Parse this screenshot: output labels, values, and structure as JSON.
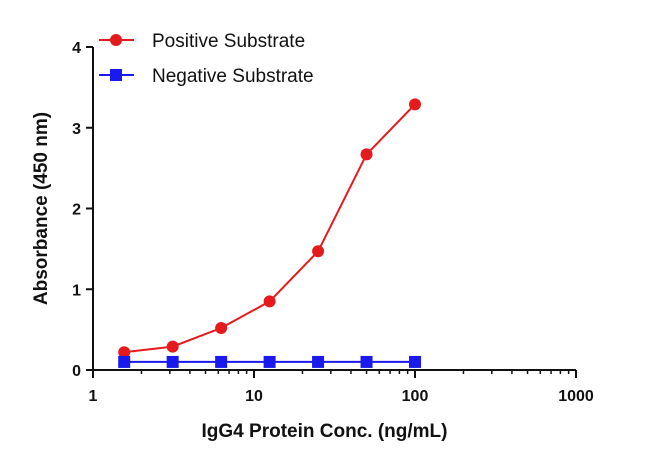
{
  "chart_data": {
    "type": "line",
    "x_scale": "log",
    "xlabel": "IgG4 Protein Conc. (ng/mL)",
    "ylabel": "Absorbance (450 nm)",
    "xlim": [
      1,
      1000
    ],
    "ylim": [
      0,
      4
    ],
    "x_ticks": [
      1,
      10,
      100,
      1000
    ],
    "x_tick_labels": [
      "1",
      "10",
      "100",
      "1000"
    ],
    "y_ticks": [
      0,
      1,
      2,
      3,
      4
    ],
    "y_tick_labels": [
      "0",
      "1",
      "2",
      "3",
      "4"
    ],
    "grid": false,
    "legend_position": "top-left",
    "x": [
      1.5625,
      3.125,
      6.25,
      12.5,
      25,
      50,
      100
    ],
    "series": [
      {
        "name": "Positive Substrate",
        "color": "#e41a1c",
        "marker": "circle",
        "values": [
          0.22,
          0.29,
          0.52,
          0.85,
          1.47,
          2.67,
          3.29
        ]
      },
      {
        "name": "Negative Substrate",
        "color": "#1a1aee",
        "marker": "square",
        "values": [
          0.1,
          0.1,
          0.1,
          0.1,
          0.1,
          0.1,
          0.1
        ]
      }
    ]
  }
}
